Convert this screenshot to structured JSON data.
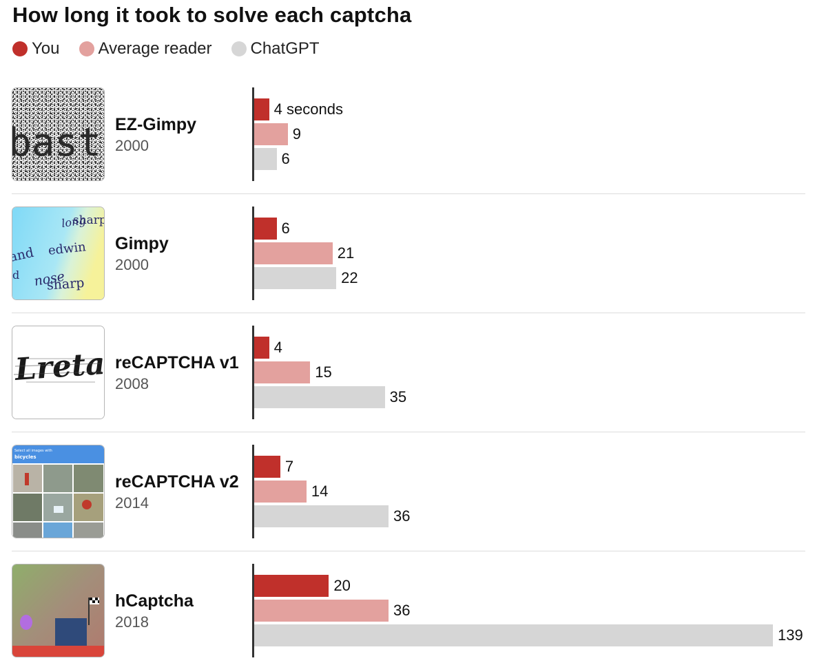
{
  "title": "How long it took to solve each captcha",
  "legend": [
    {
      "label": "You",
      "color": "#c0302b"
    },
    {
      "label": "Average reader",
      "color": "#e3a19e"
    },
    {
      "label": "ChatGPT",
      "color": "#d6d6d6"
    }
  ],
  "chart_data": {
    "type": "bar",
    "orientation": "horizontal",
    "title": "How long it took to solve each captcha",
    "unit_label": "seconds",
    "categories": [
      "EZ-Gimpy",
      "Gimpy",
      "reCAPTCHA v1",
      "reCAPTCHA v2",
      "hCaptcha"
    ],
    "years": [
      "2000",
      "2000",
      "2008",
      "2014",
      "2018"
    ],
    "series": [
      {
        "name": "You",
        "color": "#c0302b",
        "values": [
          4,
          6,
          4,
          7,
          20
        ]
      },
      {
        "name": "Average reader",
        "color": "#e3a19e",
        "values": [
          9,
          21,
          15,
          14,
          36
        ]
      },
      {
        "name": "ChatGPT",
        "color": "#d6d6d6",
        "values": [
          6,
          22,
          35,
          36,
          139
        ]
      }
    ],
    "first_label_suffix": " seconds",
    "xlim": [
      0,
      139
    ],
    "grid": false,
    "legend_position": "top-left"
  },
  "thumbs": {
    "ez_gimpy_text": "bast",
    "gimpy_words": [
      "sharp",
      "long",
      "and",
      "edwin",
      "nose",
      "sharp",
      "d"
    ],
    "recaptcha_v1_text": "Lreta",
    "recaptcha_v2_prompt": "Select all images with",
    "recaptcha_v2_target": "bicycles"
  }
}
